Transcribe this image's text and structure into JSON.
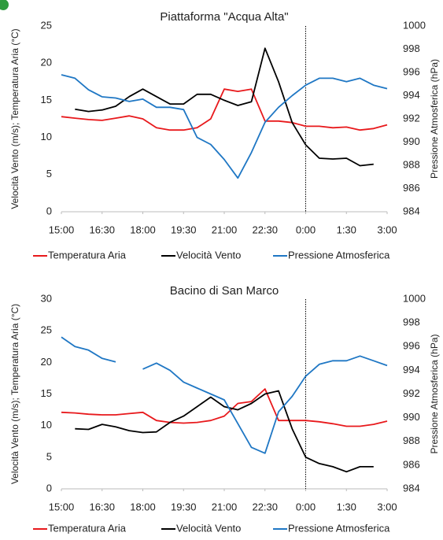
{
  "charts": [
    {
      "chart_data": {
        "type": "line",
        "title": "Piattaforma \"Acqua Alta\"",
        "ylabel": "Velocità Vento (m/s); Temperatura Aria (°C)",
        "y2label": "Pressione Atmosferica (hPa)",
        "x": [
          0,
          0.5,
          1,
          1.5,
          2,
          2.5,
          3,
          3.5,
          4,
          4.5,
          5,
          5.5,
          6,
          6.5,
          7,
          7.5,
          8,
          8.5,
          9,
          9.5,
          10,
          10.5,
          11,
          11.5,
          12
        ],
        "xlim": [
          0,
          12
        ],
        "xticks": [
          {
            "value": 0,
            "label": "15:00"
          },
          {
            "value": 1.5,
            "label": "16:30"
          },
          {
            "value": 3,
            "label": "18:00"
          },
          {
            "value": 4.5,
            "label": "19:30"
          },
          {
            "value": 6,
            "label": "21:00"
          },
          {
            "value": 7.5,
            "label": "22:30"
          },
          {
            "value": 9,
            "label": "0:00"
          },
          {
            "value": 10.5,
            "label": "1:30"
          },
          {
            "value": 12,
            "label": "3:00"
          }
        ],
        "ylim": [
          0,
          25
        ],
        "yticks": [
          0,
          5,
          10,
          15,
          20,
          25
        ],
        "y2lim": [
          984,
          1000
        ],
        "y2ticks": [
          984,
          986,
          988,
          990,
          992,
          994,
          996,
          998,
          1000
        ],
        "reference_line_x": 9,
        "series": [
          {
            "name": "Temperatura Aria",
            "color": "#e8191c",
            "values": [
              12.8,
              12.6,
              12.4,
              12.3,
              12.6,
              12.9,
              12.5,
              11.3,
              11.0,
              11.0,
              11.3,
              12.5,
              16.5,
              16.2,
              16.5,
              12.2,
              12.2,
              12.0,
              11.5,
              11.5,
              11.3,
              11.4,
              11.0,
              11.2,
              11.7
            ]
          },
          {
            "name": "Velocità Vento",
            "color": "#000000",
            "values": [
              null,
              13.8,
              13.5,
              13.7,
              14.2,
              15.5,
              16.5,
              15.5,
              14.5,
              14.5,
              15.8,
              15.8,
              15.0,
              14.3,
              14.8,
              22.0,
              17.5,
              12.0,
              9.0,
              7.2,
              7.1,
              7.2,
              6.2,
              6.4,
              null
            ]
          },
          {
            "name": "Pressione Atmosferica",
            "color": "#1f77c4",
            "axis": "y2",
            "values": [
              995.8,
              995.5,
              994.5,
              993.9,
              993.8,
              993.5,
              993.7,
              993.0,
              993.0,
              992.8,
              990.4,
              989.8,
              988.5,
              986.9,
              989.1,
              991.7,
              993.0,
              994.0,
              994.9,
              995.5,
              995.5,
              995.2,
              995.5,
              994.9,
              994.6
            ]
          }
        ]
      }
    },
    {
      "chart_data": {
        "type": "line",
        "title": "Bacino di San Marco",
        "ylabel": "Velocità Vento (m/s); Temperatura Aria (°C)",
        "y2label": "Pressione Atmosferica (hPa)",
        "x": [
          0,
          0.5,
          1,
          1.5,
          2,
          2.5,
          3,
          3.5,
          4,
          4.5,
          5,
          5.5,
          6,
          6.5,
          7,
          7.5,
          8,
          8.5,
          9,
          9.5,
          10,
          10.5,
          11,
          11.5,
          12
        ],
        "xlim": [
          0,
          12
        ],
        "xticks": [
          {
            "value": 0,
            "label": "15:00"
          },
          {
            "value": 1.5,
            "label": "16:30"
          },
          {
            "value": 3,
            "label": "18:00"
          },
          {
            "value": 4.5,
            "label": "19:30"
          },
          {
            "value": 6,
            "label": "21:00"
          },
          {
            "value": 7.5,
            "label": "22:30"
          },
          {
            "value": 9,
            "label": "0:00"
          },
          {
            "value": 10.5,
            "label": "1:30"
          },
          {
            "value": 12,
            "label": "3:00"
          }
        ],
        "ylim": [
          0,
          30
        ],
        "yticks": [
          0,
          5,
          10,
          15,
          20,
          25,
          30
        ],
        "y2lim": [
          984,
          1000
        ],
        "y2ticks": [
          984,
          986,
          988,
          990,
          992,
          994,
          996,
          998,
          1000
        ],
        "reference_line_x": 9,
        "series": [
          {
            "name": "Temperatura Aria",
            "color": "#e8191c",
            "values": [
              12.1,
              12.0,
              11.8,
              11.7,
              11.7,
              11.9,
              12.1,
              10.8,
              10.5,
              10.4,
              10.5,
              10.8,
              11.5,
              13.5,
              13.8,
              15.8,
              10.8,
              10.8,
              10.8,
              10.6,
              10.3,
              9.9,
              9.9,
              10.2,
              10.7
            ]
          },
          {
            "name": "Velocità Vento",
            "color": "#000000",
            "values": [
              null,
              9.5,
              9.4,
              10.2,
              9.8,
              9.2,
              8.9,
              9.0,
              10.5,
              11.5,
              13.0,
              14.5,
              13.0,
              12.5,
              13.5,
              15.0,
              15.5,
              9.5,
              5.0,
              4.0,
              3.5,
              2.7,
              3.5,
              3.5,
              null
            ]
          },
          {
            "name": "Pressione Atmosferica",
            "color": "#1f77c4",
            "axis": "y2",
            "values": [
              996.8,
              996.0,
              995.7,
              995.0,
              994.7,
              null,
              994.1,
              994.6,
              994.0,
              993.0,
              992.5,
              992.0,
              991.5,
              989.5,
              987.5,
              987.0,
              990.5,
              991.8,
              993.5,
              994.5,
              994.8,
              994.8,
              995.2,
              994.8,
              994.4
            ]
          }
        ]
      }
    }
  ]
}
